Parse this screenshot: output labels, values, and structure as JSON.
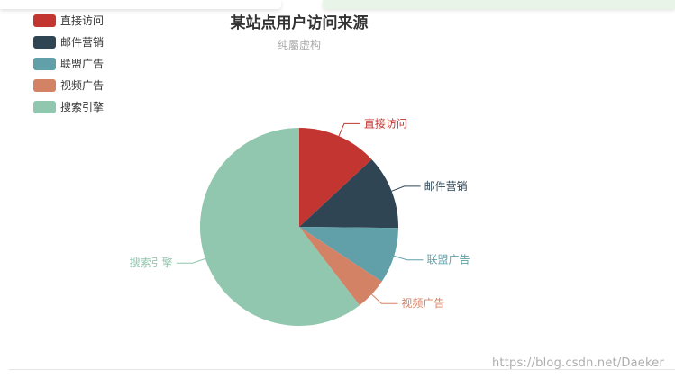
{
  "chart_data": {
    "type": "pie",
    "title": "某站点用户访问来源",
    "subtitle": "纯屬虚构",
    "legend": {
      "position": "top-left",
      "orient": "vertical"
    },
    "series": [
      {
        "name": "",
        "data": [
          {
            "name": "直接访问",
            "value": 335,
            "color": "#c23531"
          },
          {
            "name": "邮件营销",
            "value": 310,
            "color": "#2f4554"
          },
          {
            "name": "联盟广告",
            "value": 234,
            "color": "#61a0a8"
          },
          {
            "name": "视频广告",
            "value": 135,
            "color": "#d48265"
          },
          {
            "name": "搜索引擎",
            "value": 1548,
            "color": "#91c7ae"
          }
        ]
      }
    ]
  },
  "watermark": "https://blog.csdn.net/Daeker"
}
